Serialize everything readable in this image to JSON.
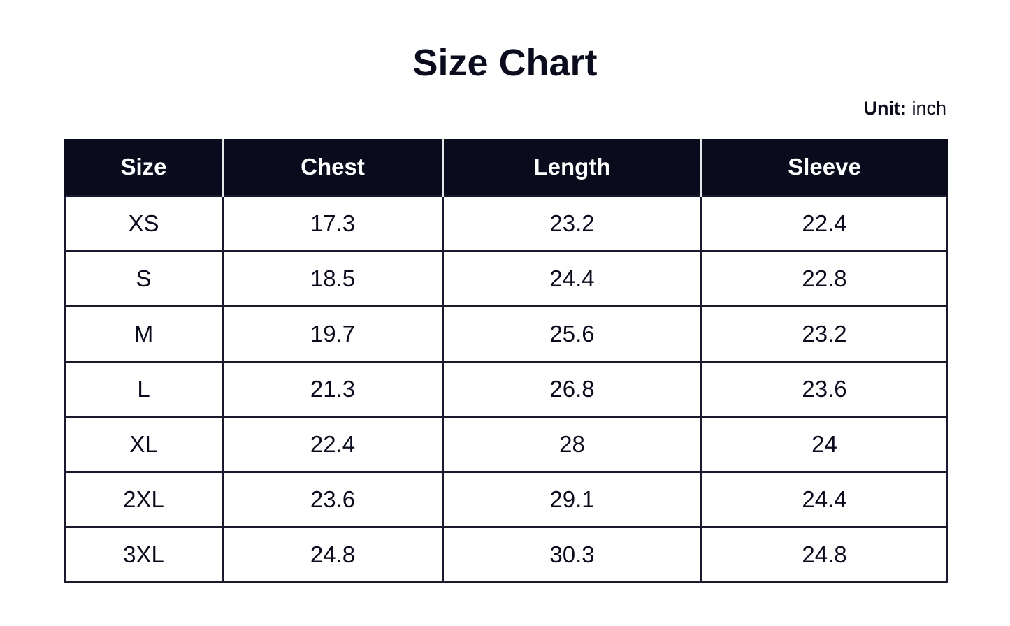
{
  "header": {
    "title": "Size Chart",
    "unit_label": "Unit:",
    "unit": "inch"
  },
  "table": {
    "columns": [
      "Size",
      "Chest",
      "Length",
      "Sleeve"
    ],
    "rows": [
      [
        "XS",
        "17.3",
        "23.2",
        "22.4"
      ],
      [
        "S",
        "18.5",
        "24.4",
        "22.8"
      ],
      [
        "M",
        "19.7",
        "25.6",
        "23.2"
      ],
      [
        "L",
        "21.3",
        "26.8",
        "23.6"
      ],
      [
        "XL",
        "22.4",
        "28",
        "24"
      ],
      [
        "2XL",
        "23.6",
        "29.1",
        "24.4"
      ],
      [
        "3XL",
        "24.8",
        "30.3",
        "24.8"
      ]
    ]
  }
}
